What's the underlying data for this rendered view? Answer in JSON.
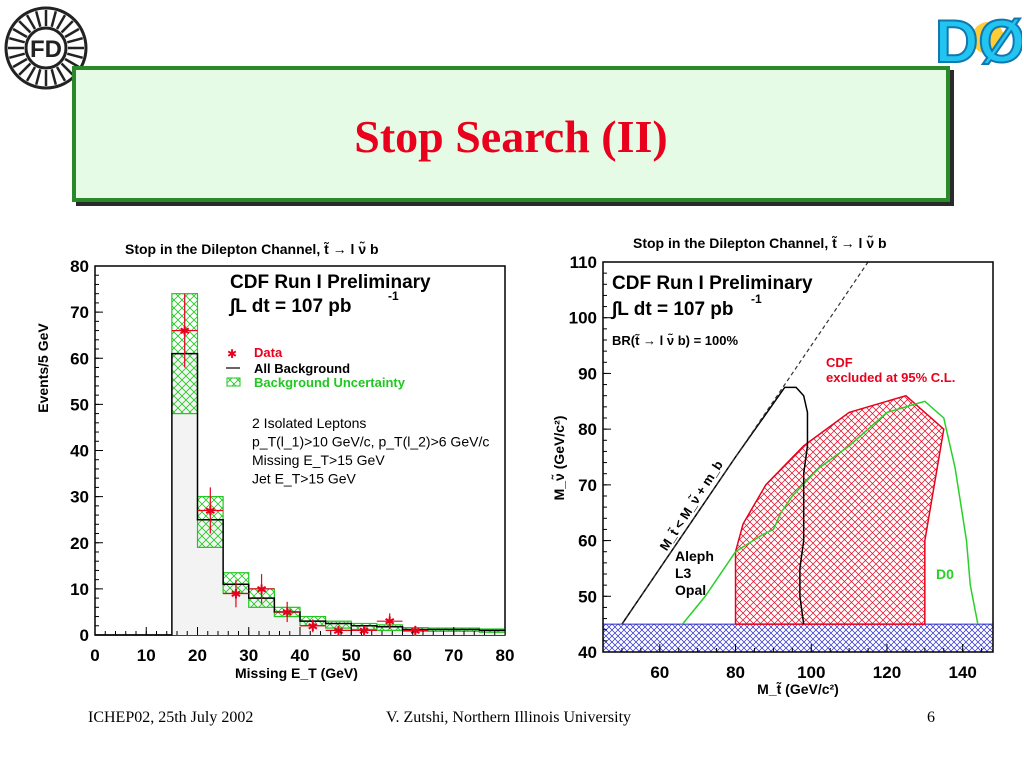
{
  "slide": {
    "title": "Stop Search (II)",
    "footer_left": "ICHEP02, 25th July 2002",
    "footer_center": "V. Zutshi, Northern Illinois University",
    "footer_right": "6",
    "logo_left_text": "FD",
    "logo_right_text": "DØ"
  },
  "colors": {
    "title_red": "#e8001c",
    "title_box_bg": "#e6fbe6",
    "title_box_border": "#2a8a2a",
    "data_red": "#e8001c",
    "uncertainty_green": "#1ec81e",
    "cdf_red": "#e8001c",
    "d0_green": "#2ad02a",
    "lep_blue": "#2a2ad0"
  },
  "chart_data": [
    {
      "type": "histogram",
      "title": "Stop in the Dilepton Channel, t̃ → l ν̃ b",
      "xlabel": "Missing E_T (GeV)",
      "ylabel": "Events/5 GeV",
      "xlim": [
        0,
        80
      ],
      "ylim": [
        0,
        80
      ],
      "xticks": [
        0,
        10,
        20,
        30,
        40,
        50,
        60,
        70,
        80
      ],
      "yticks": [
        0,
        10,
        20,
        30,
        40,
        50,
        60,
        70,
        80
      ],
      "header_1": "CDF Run I Preliminary",
      "header_2": "∫L dt = 107 pb",
      "header_2_sup": "-1",
      "legend": [
        "Data",
        "All Background",
        "Background Uncertainty"
      ],
      "cuts": [
        "2 Isolated Leptons",
        "p_T(l_1)>10 GeV/c, p_T(l_2)>6 GeV/c",
        "Missing E_T>15 GeV",
        "Jet E_T>15 GeV"
      ],
      "bin_width": 5,
      "background": {
        "bin_lo": [
          0,
          5,
          10,
          15,
          20,
          25,
          30,
          35,
          40,
          45,
          50,
          55,
          60,
          65,
          70,
          75
        ],
        "values": [
          0,
          0,
          0,
          61,
          25,
          11,
          8,
          5,
          3,
          2.5,
          2,
          1.8,
          1.2,
          1.2,
          1.2,
          1.0
        ],
        "unc_low": [
          0,
          0,
          0,
          48,
          19,
          9,
          6,
          4,
          2,
          1.5,
          1.2,
          1,
          0.8,
          0.8,
          0.8,
          0.6
        ],
        "unc_high": [
          0,
          0,
          0,
          74,
          30,
          13.5,
          10,
          6,
          4,
          3,
          2.5,
          2.2,
          1.6,
          1.5,
          1.5,
          1.3
        ]
      },
      "data": {
        "x": [
          17.5,
          22.5,
          27.5,
          32.5,
          37.5,
          42.5,
          47.5,
          52.5,
          57.5,
          62.5
        ],
        "y": [
          66,
          27,
          9,
          10,
          5,
          2,
          1,
          1,
          3,
          1
        ],
        "err": [
          8,
          5,
          3,
          3.2,
          2.2,
          1.4,
          1,
          1,
          1.7,
          1
        ]
      }
    },
    {
      "type": "exclusion-plot",
      "title": "Stop in the Dilepton Channel, t̃ → l ν̃ b",
      "xlabel": "M_t̃ (GeV/c²)",
      "ylabel": "M_ν̃ (GeV/c²)",
      "xlim": [
        45,
        148
      ],
      "ylim": [
        40,
        110
      ],
      "xticks": [
        60,
        80,
        100,
        120,
        140
      ],
      "yticks": [
        40,
        50,
        60,
        70,
        80,
        90,
        100,
        110
      ],
      "header_1": "CDF Run I Preliminary",
      "header_2": "∫L dt = 107 pb",
      "header_2_sup": "-1",
      "header_3": "BR(t̃ → l ν̃ b) = 100%",
      "kinematic_label": "M_t̃ < M_ν̃ + m_b",
      "kinematic_line": {
        "x": [
          50,
          115
        ],
        "y": [
          45,
          110
        ]
      },
      "lep_label": [
        "Aleph",
        "L3",
        "Opal"
      ],
      "lep_excluded_y": [
        40,
        45
      ],
      "cdf_label": [
        "CDF",
        "excluded at 95% C.L."
      ],
      "d0_label": "D0",
      "cdf_excluded": {
        "x": [
          80,
          80,
          82,
          88,
          98,
          110,
          125,
          135,
          130,
          130,
          80
        ],
        "y": [
          45,
          58,
          63,
          70,
          77,
          83,
          86,
          80,
          60,
          45,
          45
        ]
      },
      "d0_contour": {
        "x": [
          66,
          72,
          80,
          87,
          90,
          92,
          95,
          102,
          110,
          120,
          130,
          135,
          138,
          141,
          142,
          144
        ],
        "y": [
          45,
          50,
          58,
          61,
          62,
          65,
          68,
          73,
          77,
          83,
          85,
          82,
          73,
          60,
          52,
          45
        ]
      },
      "lep_contour": {
        "x": [
          50,
          80,
          93,
          96,
          98,
          99,
          99,
          98,
          98,
          97,
          97,
          98
        ],
        "y": [
          45,
          75,
          87.5,
          87.5,
          86,
          83,
          77,
          72,
          60,
          55,
          50,
          45
        ]
      }
    }
  ]
}
